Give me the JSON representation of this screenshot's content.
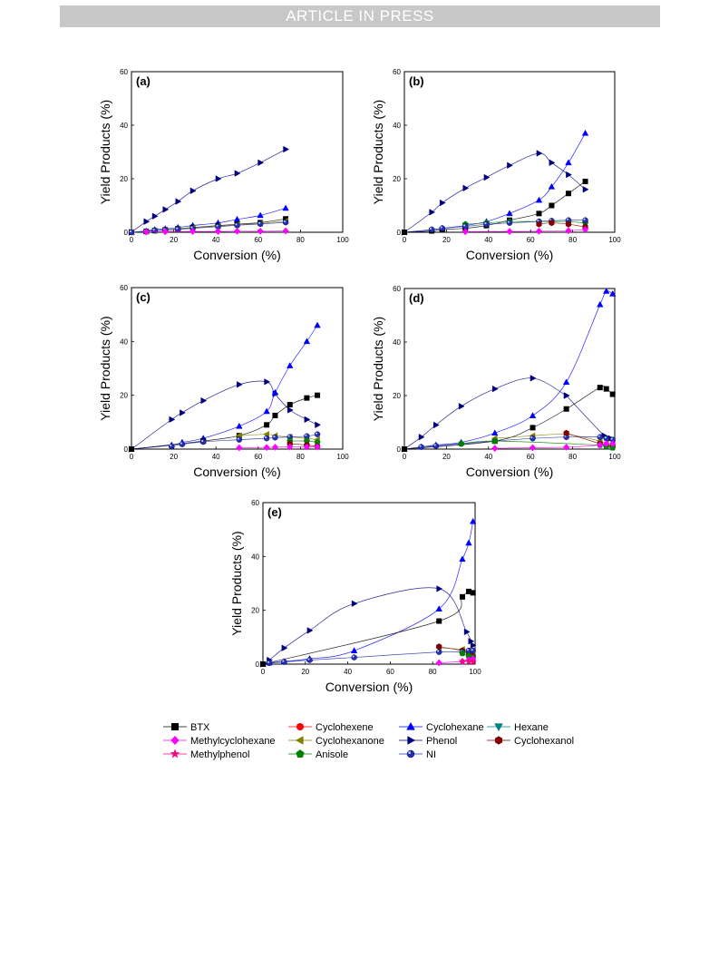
{
  "header": {
    "banner_text": "ARTICLE IN PRESS"
  },
  "chart_data": [
    {
      "type": "scatter",
      "panel": "(a)",
      "xlabel": "Conversion (%)",
      "ylabel": "Yield Products (%)",
      "xlim": [
        0,
        100
      ],
      "ylim": [
        0,
        60
      ],
      "xticks": [
        0,
        20,
        40,
        60,
        80,
        100
      ],
      "yticks": [
        0,
        20,
        40,
        60
      ],
      "series": [
        {
          "name": "Phenol",
          "x": [
            0,
            7,
            11,
            16,
            22,
            29,
            41,
            50,
            61,
            73
          ],
          "y": [
            0,
            4,
            6,
            8.5,
            11.5,
            15.5,
            20,
            22,
            26,
            31
          ]
        },
        {
          "name": "Cyclohexane",
          "x": [
            0,
            7,
            11,
            16,
            22,
            29,
            41,
            50,
            61,
            73
          ],
          "y": [
            0,
            0.5,
            1,
            1.3,
            1.8,
            2.5,
            3.5,
            4.8,
            6.3,
            9
          ]
        },
        {
          "name": "BTX",
          "x": [
            0,
            7,
            11,
            16,
            22,
            29,
            41,
            50,
            61,
            73
          ],
          "y": [
            0,
            0.3,
            0.6,
            0.9,
            1.3,
            1.8,
            2.5,
            3,
            3.6,
            5
          ]
        },
        {
          "name": "Cyclohexanone",
          "x": [
            0,
            7,
            11,
            16,
            22,
            29,
            41,
            50,
            61,
            73
          ],
          "y": [
            0,
            0.3,
            0.6,
            0.9,
            1.2,
            1.7,
            2.3,
            2.8,
            3.3,
            4.2
          ]
        },
        {
          "name": "NI",
          "x": [
            0,
            7,
            11,
            16,
            22,
            29,
            41,
            50,
            61,
            73
          ],
          "y": [
            0,
            0.3,
            0.6,
            0.8,
            1.1,
            1.5,
            2.1,
            2.6,
            3.1,
            3.7
          ]
        },
        {
          "name": "Methylcyclohexane",
          "x": [
            7,
            16,
            29,
            41,
            50,
            61,
            73
          ],
          "y": [
            0.1,
            0.2,
            0.3,
            0.3,
            0.4,
            0.4,
            0.5
          ]
        }
      ]
    },
    {
      "type": "scatter",
      "panel": "(b)",
      "xlabel": "Conversion (%)",
      "ylabel": "Yield Products (%)",
      "xlim": [
        0,
        100
      ],
      "ylim": [
        0,
        60
      ],
      "xticks": [
        0,
        20,
        40,
        60,
        80,
        100
      ],
      "yticks": [
        0,
        20,
        40,
        60
      ],
      "series": [
        {
          "name": "Phenol",
          "x": [
            0,
            13,
            18,
            29,
            39,
            50,
            64,
            70,
            78,
            86
          ],
          "y": [
            0,
            7.5,
            11,
            16.5,
            20.5,
            25,
            29.5,
            26,
            21.5,
            16
          ]
        },
        {
          "name": "Cyclohexane",
          "x": [
            0,
            13,
            18,
            29,
            39,
            50,
            64,
            70,
            78,
            86
          ],
          "y": [
            0,
            1,
            1.5,
            2.5,
            4,
            7,
            12,
            17,
            26,
            37
          ]
        },
        {
          "name": "BTX",
          "x": [
            0,
            13,
            18,
            29,
            39,
            50,
            64,
            70,
            78,
            86
          ],
          "y": [
            0,
            0.5,
            1,
            1.5,
            2.5,
            4.5,
            7,
            10,
            14.5,
            19
          ]
        },
        {
          "name": "Anisole",
          "x": [
            29,
            39,
            50,
            64,
            70,
            78,
            86
          ],
          "y": [
            3,
            3.5,
            4,
            4,
            4,
            4,
            3.5
          ]
        },
        {
          "name": "NI",
          "x": [
            13,
            18,
            29,
            39,
            50,
            64,
            70,
            78,
            86
          ],
          "y": [
            1,
            1.5,
            2.2,
            3,
            3.5,
            4,
            4.3,
            4.5,
            4.5
          ]
        },
        {
          "name": "Cyclohexanol",
          "x": [
            64,
            70,
            78,
            86
          ],
          "y": [
            3,
            3.5,
            3,
            2
          ]
        },
        {
          "name": "Methylcyclohexane",
          "x": [
            29,
            50,
            64,
            78,
            86
          ],
          "y": [
            0.2,
            0.3,
            0.4,
            0.6,
            1
          ]
        }
      ]
    },
    {
      "type": "scatter",
      "panel": "(c)",
      "xlabel": "Conversion (%)",
      "ylabel": "Yield Products (%)",
      "xlim": [
        0,
        100
      ],
      "ylim": [
        0,
        60
      ],
      "xticks": [
        0,
        20,
        40,
        60,
        80,
        100
      ],
      "yticks": [
        0,
        20,
        40,
        60
      ],
      "series": [
        {
          "name": "Phenol",
          "x": [
            0,
            19,
            24,
            34,
            51,
            64,
            68,
            75,
            83,
            88
          ],
          "y": [
            0,
            11,
            13.5,
            18,
            24,
            25,
            20.5,
            14.5,
            11,
            9
          ]
        },
        {
          "name": "Cyclohexane",
          "x": [
            0,
            19,
            24,
            34,
            51,
            64,
            68,
            75,
            83,
            88
          ],
          "y": [
            0,
            1.5,
            2.5,
            4,
            8.5,
            14,
            21,
            31,
            40,
            46
          ]
        },
        {
          "name": "BTX",
          "x": [
            0,
            34,
            51,
            64,
            68,
            75,
            83,
            88
          ],
          "y": [
            0,
            3,
            5,
            9,
            12.5,
            16.5,
            19,
            20
          ]
        },
        {
          "name": "Cyclohexanone",
          "x": [
            51,
            64,
            68,
            75,
            83,
            88
          ],
          "y": [
            5,
            5.5,
            5,
            4.5,
            4,
            3.5
          ]
        },
        {
          "name": "NI",
          "x": [
            19,
            24,
            34,
            51,
            64,
            68,
            75,
            83,
            88
          ],
          "y": [
            1,
            1.8,
            2.7,
            3.5,
            4,
            4.3,
            4.5,
            4.8,
            5.5
          ]
        },
        {
          "name": "Anisole",
          "x": [
            75,
            83,
            88
          ],
          "y": [
            3,
            3,
            2.5
          ]
        },
        {
          "name": "Cyclohexanol",
          "x": [
            75,
            83,
            88
          ],
          "y": [
            2,
            1.5,
            1
          ]
        },
        {
          "name": "Methylcyclohexane",
          "x": [
            51,
            64,
            68,
            75,
            83,
            88
          ],
          "y": [
            0.5,
            0.6,
            0.7,
            0.8,
            0.8,
            0.8
          ]
        }
      ]
    },
    {
      "type": "scatter",
      "panel": "(d)",
      "xlabel": "Conversion (%)",
      "ylabel": "Yield Products (%)",
      "xlim": [
        0,
        100
      ],
      "ylim": [
        0,
        60
      ],
      "xticks": [
        0,
        20,
        40,
        60,
        80,
        100
      ],
      "yticks": [
        0,
        20,
        40,
        60
      ],
      "series": [
        {
          "name": "Phenol",
          "x": [
            0,
            8,
            15,
            27,
            43,
            61,
            77,
            77,
            95,
            98
          ],
          "y": [
            0,
            4.5,
            9,
            16,
            22.5,
            26.5,
            20,
            20,
            5,
            4
          ]
        },
        {
          "name": "Cyclohexane",
          "x": [
            0,
            8,
            15,
            27,
            43,
            61,
            77,
            93,
            96,
            99
          ],
          "y": [
            0,
            0.8,
            1.5,
            2.5,
            6,
            12.5,
            25,
            54,
            59,
            58
          ]
        },
        {
          "name": "BTX",
          "x": [
            0,
            43,
            61,
            77,
            93,
            96,
            99
          ],
          "y": [
            0,
            3,
            8,
            15,
            23,
            22.5,
            20.5
          ]
        },
        {
          "name": "Cyclohexanone",
          "x": [
            43,
            61,
            77,
            93,
            96,
            99
          ],
          "y": [
            4,
            5,
            5.5,
            3,
            2,
            1
          ]
        },
        {
          "name": "NI",
          "x": [
            8,
            15,
            27,
            43,
            61,
            77,
            93,
            96,
            99
          ],
          "y": [
            0.8,
            1.2,
            2,
            3,
            4,
            4.5,
            4.5,
            4,
            3.5
          ]
        },
        {
          "name": "Cyclohexanol",
          "x": [
            77,
            93,
            96,
            99
          ],
          "y": [
            6,
            2,
            1.5,
            1
          ]
        },
        {
          "name": "Anisole",
          "x": [
            27,
            43,
            93,
            96,
            99
          ],
          "y": [
            2,
            3,
            1.5,
            1,
            0.5
          ]
        },
        {
          "name": "Methylcyclohexane",
          "x": [
            43,
            61,
            77,
            93,
            96,
            99
          ],
          "y": [
            0.3,
            0.5,
            0.7,
            1.5,
            2,
            2
          ]
        }
      ]
    },
    {
      "type": "scatter",
      "panel": "(e)",
      "xlabel": "Conversion (%)",
      "ylabel": "Yield Products (%)",
      "xlim": [
        0,
        100
      ],
      "ylim": [
        0,
        60
      ],
      "xticks": [
        0,
        20,
        40,
        60,
        80,
        100
      ],
      "yticks": [
        0,
        20,
        40,
        60
      ],
      "series": [
        {
          "name": "Phenol",
          "x": [
            0,
            3,
            10,
            22,
            43,
            83,
            96,
            98,
            99
          ],
          "y": [
            0,
            1.5,
            6,
            12.5,
            22.5,
            28,
            12,
            8.5,
            7
          ]
        },
        {
          "name": "Cyclohexane",
          "x": [
            0,
            3,
            10,
            22,
            43,
            83,
            94,
            97,
            99
          ],
          "y": [
            0,
            0.5,
            1,
            2,
            5,
            20.5,
            39,
            45,
            53
          ]
        },
        {
          "name": "BTX",
          "x": [
            0,
            83,
            94,
            97,
            99
          ],
          "y": [
            0,
            16,
            25,
            27,
            26.5
          ]
        },
        {
          "name": "Cyclohexanone",
          "x": [
            83,
            94,
            97,
            99
          ],
          "y": [
            6,
            5.5,
            5,
            4
          ]
        },
        {
          "name": "Cyclohexanol",
          "x": [
            83,
            94,
            97,
            99
          ],
          "y": [
            6.5,
            5,
            4,
            3
          ]
        },
        {
          "name": "NI",
          "x": [
            3,
            10,
            22,
            43,
            83,
            94,
            97,
            99
          ],
          "y": [
            0.4,
            0.8,
            1.5,
            2.5,
            4.5,
            4.5,
            5,
            5
          ]
        },
        {
          "name": "Anisole",
          "x": [
            94,
            97,
            99
          ],
          "y": [
            4,
            3,
            2.5
          ]
        },
        {
          "name": "Methylcyclohexane",
          "x": [
            83,
            94,
            97,
            99
          ],
          "y": [
            0.5,
            1,
            1.5,
            2
          ]
        },
        {
          "name": "Methylphenol",
          "x": [
            94,
            97,
            99
          ],
          "y": [
            1,
            1,
            0.8
          ]
        }
      ]
    }
  ],
  "legend": {
    "items": [
      {
        "name": "BTX",
        "marker": "square",
        "color": "#000000"
      },
      {
        "name": "Cyclohexene",
        "marker": "circle",
        "color": "#ff0000"
      },
      {
        "name": "Cyclohexane",
        "marker": "triangle-up",
        "color": "#0000ff"
      },
      {
        "name": "Hexane",
        "marker": "triangle-down",
        "color": "#008080"
      },
      {
        "name": "Methylcyclohexane",
        "marker": "diamond",
        "color": "#ff00ff"
      },
      {
        "name": "Cyclohexanone",
        "marker": "triangle-left",
        "color": "#808000"
      },
      {
        "name": "Phenol",
        "marker": "triangle-right",
        "color": "#000080"
      },
      {
        "name": "Cyclohexanol",
        "marker": "hexagon",
        "color": "#800000"
      },
      {
        "name": "Methylphenol",
        "marker": "star",
        "color": "#ff0080"
      },
      {
        "name": "Anisole",
        "marker": "pentagon",
        "color": "#008000"
      },
      {
        "name": "NI",
        "marker": "ball",
        "color": "#2030b0"
      }
    ]
  }
}
